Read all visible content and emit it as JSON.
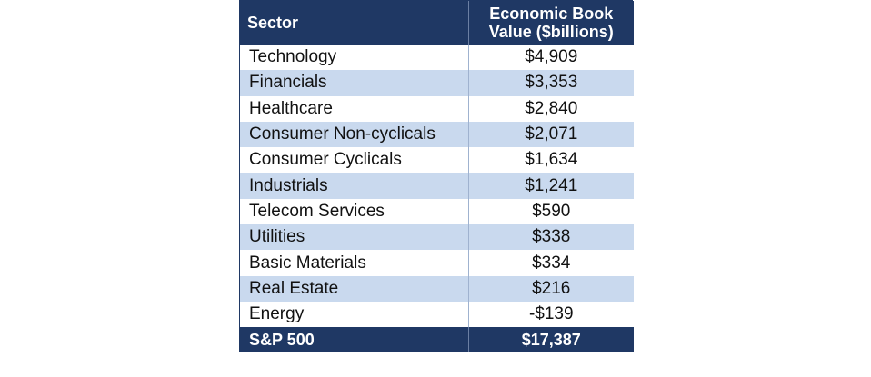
{
  "table": {
    "headers": {
      "sector": "Sector",
      "value_line1": "Economic Book",
      "value_line2": "Value ($billions)"
    },
    "rows": [
      {
        "sector": "Technology",
        "value": "$4,909"
      },
      {
        "sector": "Financials",
        "value": "$3,353"
      },
      {
        "sector": "Healthcare",
        "value": "$2,840"
      },
      {
        "sector": "Consumer Non-cyclicals",
        "value": "$2,071"
      },
      {
        "sector": "Consumer Cyclicals",
        "value": "$1,634"
      },
      {
        "sector": "Industrials",
        "value": "$1,241"
      },
      {
        "sector": "Telecom Services",
        "value": "$590"
      },
      {
        "sector": "Utilities",
        "value": "$338"
      },
      {
        "sector": "Basic Materials",
        "value": "$334"
      },
      {
        "sector": "Real Estate",
        "value": "$216"
      },
      {
        "sector": "Energy",
        "value": "-$139"
      }
    ],
    "total": {
      "sector": "S&P 500",
      "value": "$17,387"
    },
    "colors": {
      "header_bg": "#1f3864",
      "stripe": "#c9d9ee"
    }
  }
}
